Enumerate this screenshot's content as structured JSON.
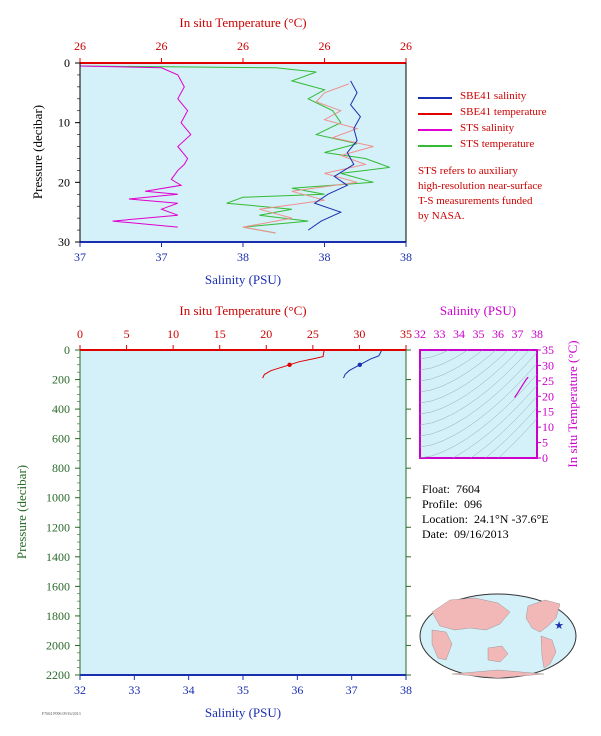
{
  "colors": {
    "plot_bg": "#d4f0f8",
    "salinity": "#1a2fb0",
    "temperature": "#e00000",
    "sts_salinity": "#e000d0",
    "sts_temperature": "#33bb33",
    "magenta_axis": "#cc00cc",
    "pressure_label": "#2a6a2a",
    "land": "#f2b8b8",
    "ocean": "#d4f0f8"
  },
  "top_chart": {
    "top_axis_title": "In situ Temperature (°C)",
    "top_tick_labels": [
      "26",
      "26",
      "26",
      "26",
      "26"
    ],
    "bottom_axis_title": "Salinity (PSU)",
    "bottom_tick_labels": [
      "37",
      "37",
      "38",
      "38",
      "38"
    ],
    "y_axis_title": "Pressure (decibar)",
    "y_tick_labels": [
      "0",
      "10",
      "20",
      "30"
    ]
  },
  "legend": {
    "items": [
      {
        "label": "SBE41 salinity",
        "color": "#1a2fb0"
      },
      {
        "label": "SBE41 temperature",
        "color": "#e00000"
      },
      {
        "label": "STS salinity",
        "color": "#e000d0"
      },
      {
        "label": "STS temperature",
        "color": "#33bb33"
      }
    ]
  },
  "sts_note": {
    "line1": "STS refers to auxiliary",
    "line2": "high-resolution near-surface",
    "line3": "T-S measurements funded",
    "line4": "by NASA."
  },
  "bottom_chart": {
    "top_axis_title": "In situ Temperature (°C)",
    "top_tick_labels": [
      "0",
      "5",
      "10",
      "15",
      "20",
      "25",
      "30",
      "35"
    ],
    "bottom_axis_title": "Salinity (PSU)",
    "bottom_tick_labels": [
      "32",
      "33",
      "34",
      "35",
      "36",
      "37",
      "38"
    ],
    "y_axis_title": "Pressure (decibar)",
    "y_tick_labels": [
      "0",
      "200",
      "400",
      "600",
      "800",
      "1000",
      "1200",
      "1400",
      "1600",
      "1800",
      "2000",
      "2200"
    ]
  },
  "ts_diagram": {
    "top_axis_title": "Salinity (PSU)",
    "top_tick_labels": [
      "32",
      "33",
      "34",
      "35",
      "36",
      "37",
      "38"
    ],
    "right_axis_title": "In situ Temperature (°C)",
    "right_tick_labels": [
      "0",
      "5",
      "10",
      "15",
      "20",
      "25",
      "30",
      "35"
    ]
  },
  "info": {
    "float_label": "Float:",
    "float_value": "7604",
    "profile_label": "Profile:",
    "profile_value": "096",
    "location_label": "Location:",
    "location_value": "24.1°N  -37.6°E",
    "date_label": "Date:",
    "date_value": "09/16/2013"
  },
  "footnote": "F7604 P096 09/16/2013",
  "chart_data": [
    {
      "type": "line",
      "title": "",
      "xlabel": "Salinity (PSU)",
      "x2label": "In situ Temperature (°C)",
      "ylabel": "Pressure (decibar)",
      "xlim": [
        37.0,
        38.0
      ],
      "x2lim": [
        25.0,
        27.0
      ],
      "ylim": [
        30,
        0
      ],
      "grid": false,
      "legend": "right",
      "series": [
        {
          "name": "STS temperature",
          "axis": "temperature",
          "x": [
            25.0,
            26.2,
            26.45,
            26.3,
            26.5,
            26.4,
            26.55,
            26.6,
            26.45,
            26.7,
            26.5,
            26.75,
            26.9,
            26.6,
            26.8,
            26.3,
            26.5,
            26.0,
            25.9,
            26.3,
            26.1,
            26.4,
            26.0,
            26.2
          ],
          "y": [
            0.5,
            0.8,
            1.5,
            3.0,
            4.5,
            6.0,
            8.0,
            10.0,
            12.0,
            13.5,
            15.0,
            16.0,
            17.5,
            18.5,
            20.0,
            21.0,
            22.0,
            22.5,
            23.5,
            24.5,
            25.5,
            26.5,
            27.5,
            28.5
          ]
        },
        {
          "name": "STS salinity",
          "axis": "salinity",
          "x": [
            37.0,
            37.25,
            37.3,
            37.32,
            37.3,
            37.33,
            37.31,
            37.34,
            37.3,
            37.33,
            37.32,
            37.3,
            37.28,
            37.31,
            37.2,
            37.3,
            37.15,
            37.3,
            37.25,
            37.3,
            37.1,
            37.3
          ],
          "y": [
            0.5,
            0.8,
            2.0,
            4.0,
            6.0,
            8.0,
            10.0,
            12.0,
            14.0,
            16.0,
            17.0,
            18.0,
            19.5,
            20.5,
            21.5,
            22.0,
            22.8,
            23.5,
            24.5,
            25.5,
            26.5,
            27.5
          ]
        },
        {
          "name": "SBE41 temperature",
          "axis": "temperature",
          "x": [
            26.65,
            26.5,
            26.45,
            26.6,
            26.5,
            26.7,
            26.55,
            26.8,
            26.6,
            26.75,
            26.5,
            26.7,
            26.3,
            26.5,
            26.1,
            26.3,
            26.0,
            26.2
          ],
          "y": [
            3.5,
            5.0,
            6.5,
            8.0,
            9.5,
            11.0,
            12.5,
            14.0,
            15.5,
            17.0,
            18.5,
            20.0,
            21.5,
            23.0,
            24.5,
            26.0,
            27.5,
            28.5
          ]
        },
        {
          "name": "SBE41 salinity",
          "axis": "salinity",
          "x": [
            37.83,
            37.85,
            37.83,
            37.86,
            37.84,
            37.85,
            37.82,
            37.84,
            37.78,
            37.82,
            37.76,
            37.72,
            37.8,
            37.74,
            37.7
          ],
          "y": [
            3.0,
            5.0,
            7.0,
            9.0,
            11.0,
            13.0,
            15.0,
            17.0,
            19.0,
            20.5,
            22.0,
            23.5,
            25.0,
            26.5,
            28.0
          ]
        }
      ]
    },
    {
      "type": "line",
      "title": "",
      "xlabel": "Salinity (PSU)",
      "x2label": "In situ Temperature (°C)",
      "ylabel": "Pressure (decibar)",
      "xlim": [
        32,
        38
      ],
      "x2lim": [
        0,
        35
      ],
      "ylim": [
        2200,
        0
      ],
      "grid": false,
      "series": [
        {
          "name": "SBE41 temperature",
          "axis": "temperature",
          "x": [
            26.2,
            26.1,
            25.0,
            23.5,
            22.5,
            21.5,
            20.5,
            19.8,
            19.6
          ],
          "y": [
            5,
            45,
            60,
            80,
            100,
            120,
            140,
            165,
            190
          ]
        },
        {
          "name": "SBE41 salinity",
          "axis": "salinity",
          "x": [
            37.55,
            37.5,
            37.35,
            37.25,
            37.15,
            37.05,
            36.95,
            36.88,
            36.85
          ],
          "y": [
            5,
            40,
            60,
            80,
            100,
            120,
            140,
            165,
            190
          ]
        }
      ]
    },
    {
      "type": "scatter",
      "title": "",
      "xlabel": "Salinity (PSU)",
      "ylabel": "In situ Temperature (°C)",
      "xlim": [
        32,
        38
      ],
      "ylim": [
        0,
        35
      ],
      "series": [
        {
          "name": "",
          "x": [
            36.85,
            37.0,
            37.15,
            37.3,
            37.45,
            37.55
          ],
          "y": [
            19.6,
            21.0,
            22.5,
            24.0,
            25.5,
            26.2
          ]
        }
      ]
    }
  ]
}
